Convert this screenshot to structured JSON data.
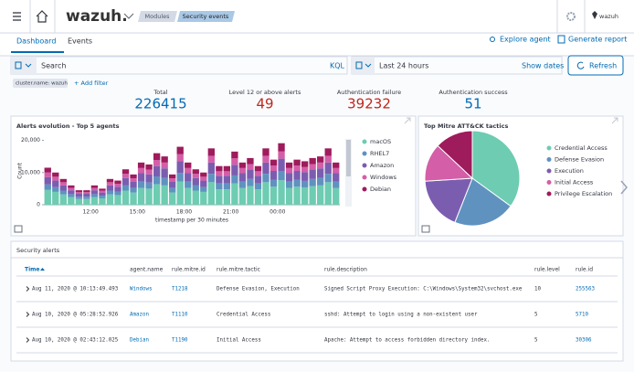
{
  "header": {
    "logo": "wazuh.",
    "breadcrumbs": [
      "Modules",
      "Security events"
    ],
    "user": "wazuh"
  },
  "tabs": [
    "Dashboard",
    "Events"
  ],
  "actions": [
    "Explore agent",
    "Generate report"
  ],
  "search": {
    "placeholder": "Search",
    "language": "KQL",
    "time_range": "Last 24 hours",
    "show_dates": "Show dates",
    "refresh": "Refresh"
  },
  "filters": {
    "active": [
      "cluster.name: wazuh"
    ],
    "add": "+ Add filter"
  },
  "stats": [
    {
      "label": "Total",
      "value": 226415,
      "color": "#006bb4"
    },
    {
      "label": "Level 12 or above alerts",
      "value": 49,
      "color": "#bd271e"
    },
    {
      "label": "Authentication failure",
      "value": 39232,
      "color": "#bd271e"
    },
    {
      "label": "Authentication success",
      "value": 51,
      "color": "#006bb4"
    }
  ],
  "alerts_chart": {
    "type": "bar",
    "stacked": true,
    "title": "Alerts evolution - Top 5 agents",
    "y_label": "Count",
    "x_label": "timestamp per 30 minutes",
    "categories": [
      null,
      null,
      null,
      null,
      null,
      null,
      "12:00",
      null,
      null,
      null,
      null,
      null,
      "15:00",
      null,
      null,
      null,
      null,
      null,
      "18:00",
      null,
      null,
      null,
      null,
      null,
      "21:00",
      null,
      null,
      null,
      null,
      null,
      "00:00",
      null,
      null,
      null,
      null,
      null,
      null,
      null
    ],
    "series": [
      {
        "name": "macOS",
        "color": "#6dccb1",
        "values": [
          4600,
          4000,
          3200,
          2400,
          1800,
          1800,
          2400,
          2000,
          3200,
          3000,
          4400,
          3800,
          5200,
          5000,
          6400,
          6000,
          3800,
          7200,
          5200,
          4400,
          4000,
          7000,
          4800,
          4800,
          6600,
          5200,
          5800,
          4800,
          7000,
          5600,
          7600,
          5200,
          5600,
          5400,
          5800,
          6000,
          7000,
          5200
        ]
      },
      {
        "name": "RHEL7",
        "color": "#6092c0",
        "values": [
          1700,
          1500,
          1200,
          900,
          700,
          700,
          900,
          800,
          1200,
          1100,
          1700,
          1400,
          2000,
          1900,
          2400,
          2300,
          1400,
          2700,
          2000,
          1700,
          1500,
          2600,
          1800,
          1800,
          2500,
          2000,
          2200,
          1800,
          2600,
          2100,
          2900,
          2000,
          2100,
          2000,
          2200,
          2300,
          2600,
          2000
        ]
      },
      {
        "name": "Amazon",
        "color": "#7b5db0",
        "values": [
          2300,
          2000,
          1600,
          1200,
          900,
          900,
          1200,
          1000,
          1600,
          1500,
          2200,
          1900,
          2600,
          2500,
          3200,
          3000,
          1900,
          3600,
          2600,
          2200,
          2000,
          3500,
          2400,
          2400,
          3300,
          2600,
          2900,
          2400,
          3500,
          2800,
          3800,
          2600,
          2800,
          2700,
          2900,
          3000,
          3500,
          2600
        ]
      },
      {
        "name": "Windows",
        "color": "#d45ea8",
        "values": [
          1400,
          1200,
          1000,
          700,
          500,
          500,
          700,
          600,
          1000,
          900,
          1300,
          1100,
          1600,
          1500,
          1900,
          1800,
          1100,
          2200,
          1600,
          1300,
          1200,
          2100,
          1400,
          1400,
          2000,
          1600,
          1700,
          1400,
          2100,
          1700,
          2300,
          1600,
          1700,
          1600,
          1700,
          1800,
          2100,
          1600
        ]
      },
      {
        "name": "Debian",
        "color": "#9e1b5c",
        "values": [
          1500,
          1300,
          1000,
          800,
          600,
          600,
          800,
          600,
          1000,
          1000,
          1400,
          1200,
          1700,
          1600,
          2100,
          1900,
          1200,
          2300,
          1700,
          1400,
          1300,
          2300,
          1600,
          1600,
          2100,
          1700,
          1900,
          1600,
          2300,
          1800,
          2500,
          1700,
          1800,
          1800,
          1900,
          1900,
          2300,
          1700
        ]
      }
    ],
    "ylim": [
      0,
      21000
    ],
    "yticks": [
      0,
      {
        "value": 10000,
        "label": "10,000"
      },
      {
        "value": 20000,
        "label": "20,000"
      }
    ]
  },
  "tactics_chart": {
    "type": "pie",
    "title": "Top Mitre ATT&CK tactics",
    "categories": [
      "Credential Access",
      "Defense Evasion",
      "Execution",
      "Initial Access",
      "Privilege Escalation"
    ],
    "values": [
      35,
      21,
      18,
      13,
      13
    ],
    "colors": [
      "#6dccb1",
      "#6092c0",
      "#7b5db0",
      "#d45ea8",
      "#9e1b5c"
    ]
  },
  "table": {
    "title": "Security alerts",
    "columns": [
      "Time",
      "agent.name",
      "rule.mitre.id",
      "rule.mitre.tactic",
      "rule.description",
      "rule.level",
      "rule.id"
    ],
    "rows": [
      [
        "Aug 11, 2020 @ 10:13:49.493",
        "Windows",
        "T1218",
        "Defense Evasion, Execution",
        "Signed Script Proxy Execution: C:\\Windows\\System32\\svchost.exe",
        "10",
        "255563"
      ],
      [
        "Aug 10, 2020 @ 05:28:52.926",
        "Amazon",
        "T1110",
        "Credential Access",
        "sshd: Attempt to login using a non-existent user",
        "5",
        "5710"
      ],
      [
        "Aug 10, 2020 @ 02:43:12.025",
        "Debian",
        "T1190",
        "Initial Access",
        "Apache: Attempt to access forbidden directory index.",
        "5",
        "30306"
      ]
    ]
  }
}
